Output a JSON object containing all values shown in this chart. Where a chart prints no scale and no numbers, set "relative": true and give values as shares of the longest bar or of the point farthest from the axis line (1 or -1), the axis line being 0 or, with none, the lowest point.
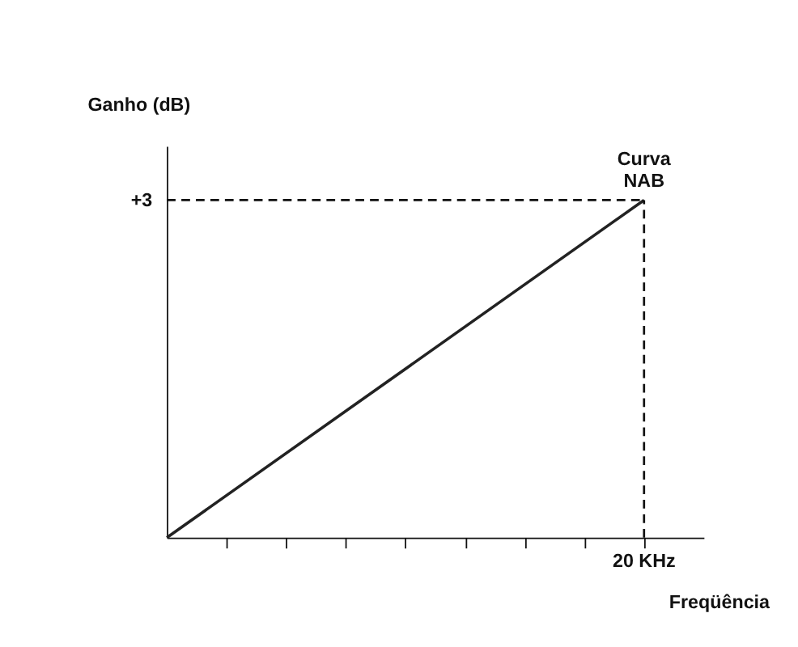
{
  "chart_data": {
    "type": "line",
    "xlabel": "Freqüência",
    "ylabel": "Ganho (dB)",
    "relative": true,
    "categories": [
      null,
      null
    ],
    "series": [
      {
        "color": "#222222",
        "values": [
          0,
          1
        ]
      }
    ],
    "ref_lines": [
      {
        "axis": "y",
        "value": 1,
        "line_style": "dashed"
      }
    ],
    "annotations": [
      "Curva\nNAB",
      "+3",
      "20 KHz"
    ],
    "grid": false,
    "line_style": "solid",
    "marker": "none"
  }
}
